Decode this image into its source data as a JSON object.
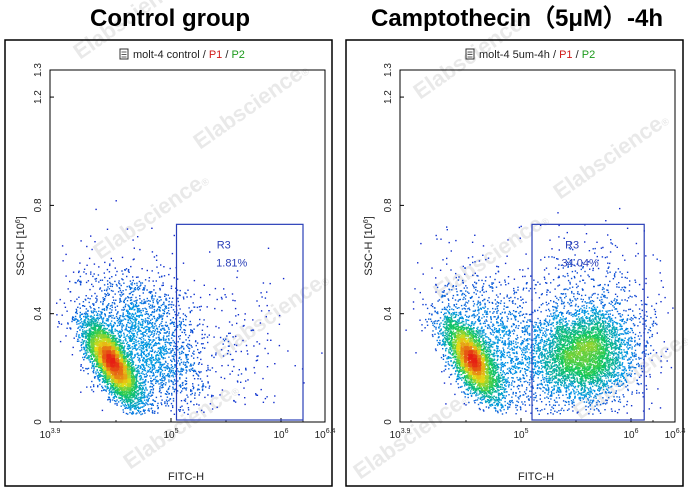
{
  "watermark": {
    "text": "Elabscience",
    "mark": "®"
  },
  "chart_data": [
    {
      "type": "scatter",
      "title": "Control group",
      "subtitle": {
        "sample": "molt-4 control",
        "sep1": " / ",
        "p1": "P1",
        "sep2": " / ",
        "p2": "P2"
      },
      "xlabel": "FITC-H",
      "ylabel": "SSC-H",
      "ylabel_unit": {
        "open": "[10",
        "exp": "6",
        "close": "]"
      },
      "xscale": "log",
      "xlim_log10": [
        3.9,
        6.4
      ],
      "ylim": [
        0,
        1.3
      ],
      "xticks": [
        {
          "base": "10",
          "exp": "3.9",
          "log": 3.9
        },
        {
          "base": "10",
          "exp": "5",
          "log": 5
        },
        {
          "base": "10",
          "exp": "6",
          "log": 6
        },
        {
          "base": "10",
          "exp": "6.4",
          "log": 6.4
        }
      ],
      "yticks": [
        {
          "label": "0",
          "value": 0
        },
        {
          "label": "0.4",
          "value": 0.4
        },
        {
          "label": "0.8",
          "value": 0.8
        },
        {
          "label": "1.2",
          "value": 1.2
        },
        {
          "label": "1.3",
          "value": 1.3
        }
      ],
      "gate": {
        "name": "R3",
        "percent": "1.81%",
        "x_log10": [
          5.05,
          6.2
        ],
        "y": [
          0.0,
          0.73
        ]
      },
      "populations": [
        {
          "cx_log10": 4.46,
          "cy": 0.22,
          "sx": 0.15,
          "sy": 0.085,
          "n": 4200,
          "rot": -0.65
        },
        {
          "cx_log10": 4.75,
          "cy": 0.3,
          "sx": 0.28,
          "sy": 0.14,
          "n": 2200,
          "rot": -0.3
        },
        {
          "cx_log10": 5.45,
          "cy": 0.28,
          "sx": 0.35,
          "sy": 0.13,
          "n": 220,
          "rot": 0
        }
      ]
    },
    {
      "type": "scatter",
      "title": "Camptothecin（5μM）-4h",
      "subtitle": {
        "sample": "molt-4 5um-4h",
        "sep1": " / ",
        "p1": "P1",
        "sep2": " / ",
        "p2": "P2"
      },
      "xlabel": "FITC-H",
      "ylabel": "SSC-H",
      "ylabel_unit": {
        "open": "[10",
        "exp": "6",
        "close": "]"
      },
      "xscale": "log",
      "xlim_log10": [
        3.9,
        6.4
      ],
      "ylim": [
        0,
        1.3
      ],
      "xticks": [
        {
          "base": "10",
          "exp": "3.9",
          "log": 3.9
        },
        {
          "base": "10",
          "exp": "5",
          "log": 5
        },
        {
          "base": "10",
          "exp": "6",
          "log": 6
        },
        {
          "base": "10",
          "exp": "6.4",
          "log": 6.4
        }
      ],
      "yticks": [
        {
          "label": "0",
          "value": 0
        },
        {
          "label": "0.4",
          "value": 0.4
        },
        {
          "label": "0.8",
          "value": 0.8
        },
        {
          "label": "1.2",
          "value": 1.2
        },
        {
          "label": "1.3",
          "value": 1.3
        }
      ],
      "gate": {
        "name": "R3",
        "percent": "34.04%",
        "x_log10": [
          5.1,
          6.12
        ],
        "y": [
          0.0,
          0.73
        ]
      },
      "populations": [
        {
          "cx_log10": 4.55,
          "cy": 0.23,
          "sx": 0.15,
          "sy": 0.085,
          "n": 3200,
          "rot": -0.6
        },
        {
          "cx_log10": 4.75,
          "cy": 0.3,
          "sx": 0.28,
          "sy": 0.14,
          "n": 1400,
          "rot": -0.3
        },
        {
          "cx_log10": 5.55,
          "cy": 0.25,
          "sx": 0.22,
          "sy": 0.08,
          "n": 3200,
          "rot": 0
        },
        {
          "cx_log10": 5.6,
          "cy": 0.32,
          "sx": 0.32,
          "sy": 0.16,
          "n": 1400,
          "rot": 0
        }
      ]
    }
  ]
}
